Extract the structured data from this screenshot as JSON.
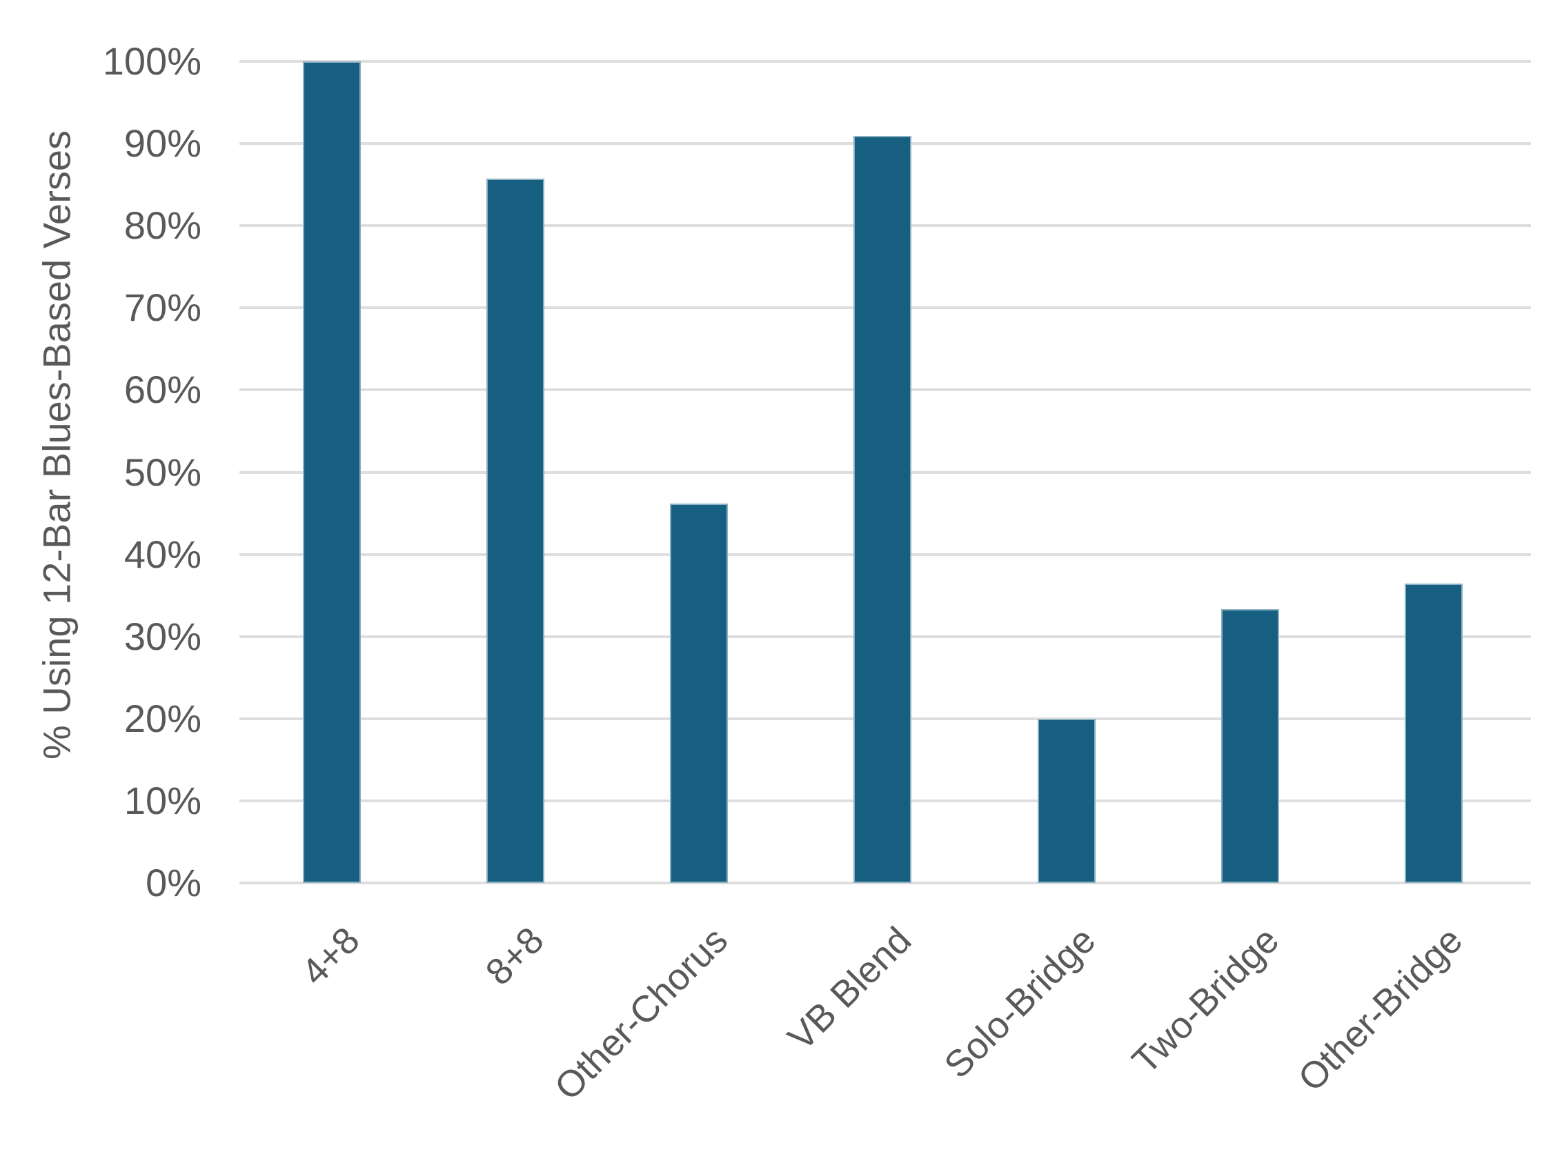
{
  "chart_data": {
    "type": "bar",
    "title": "",
    "xlabel": "",
    "ylabel": "% Using 12-Bar Blues-Based Verses",
    "categories": [
      "4+8",
      "8+8",
      "Other-Chorus",
      "VB Blend",
      "Solo-Bridge",
      "Two-Bridge",
      "Other-Bridge"
    ],
    "values": [
      100,
      85.7,
      46.2,
      90.9,
      20,
      33.3,
      36.4
    ],
    "ylim": [
      0,
      100
    ],
    "ytick_step": 10,
    "ytick_labels": [
      "0%",
      "10%",
      "20%",
      "30%",
      "40%",
      "50%",
      "60%",
      "70%",
      "80%",
      "90%",
      "100%"
    ],
    "grid": "horizontal",
    "legend_position": "none",
    "x_label_rotation_deg": -45,
    "colors": {
      "bar": "#165f80",
      "gridline": "#dedede",
      "text": "#595959",
      "background": "#ffffff"
    }
  }
}
